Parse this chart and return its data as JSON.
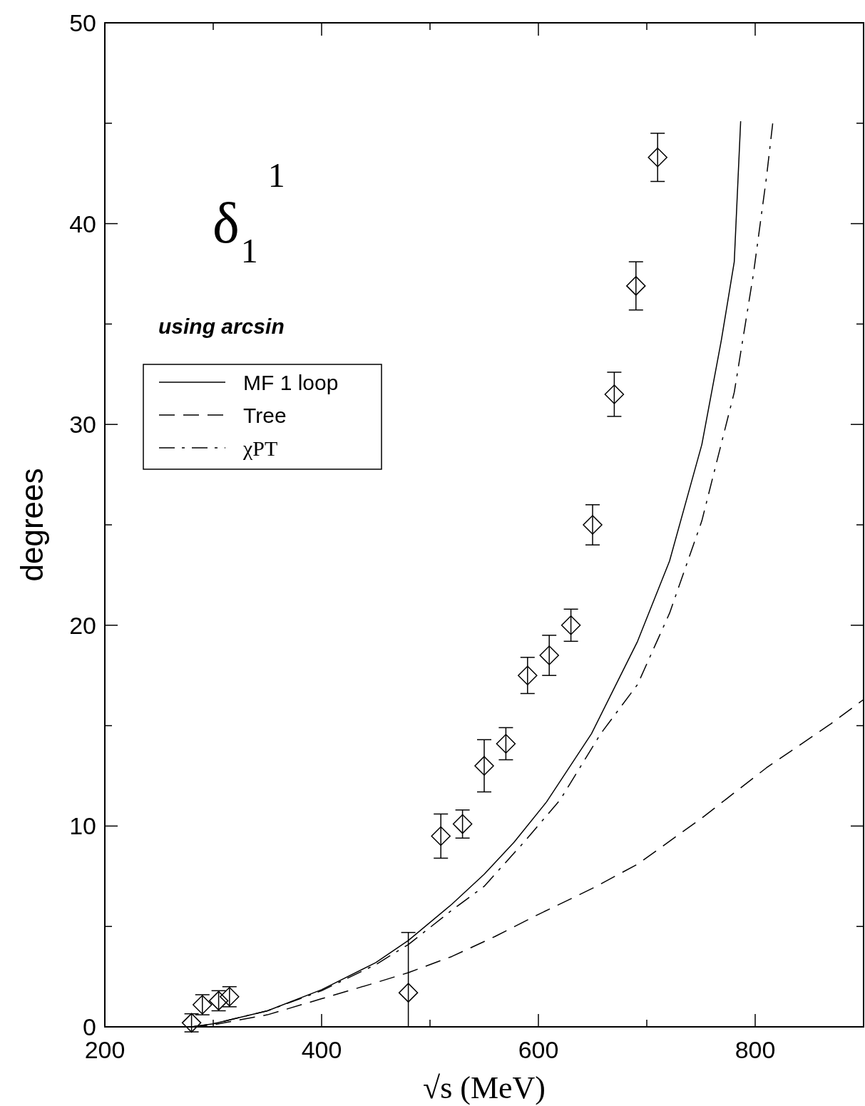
{
  "chart_data": {
    "type": "line",
    "xlabel": "√s (MeV)",
    "ylabel": "degrees",
    "annotations": [
      "δ$_{1}$$^{1}$",
      "using arcsin"
    ],
    "xlim": [
      200,
      900
    ],
    "ylim": [
      0,
      50
    ],
    "xticks": [
      200,
      {
        "value": 300,
        "label": null
      },
      400,
      {
        "value": 500,
        "label": null
      },
      600,
      {
        "value": 700,
        "label": null
      },
      800
    ],
    "yticks": [
      0,
      {
        "value": 5,
        "label": null
      },
      10,
      {
        "value": 15,
        "label": null
      },
      20,
      {
        "value": 25,
        "label": null
      },
      30,
      {
        "value": 35,
        "label": null
      },
      40,
      {
        "value": 45,
        "label": null
      },
      50
    ],
    "grid": false,
    "legend": "top left",
    "series": [
      {
        "name": "MF 1 loop",
        "color": "#000000",
        "line_style": "solid",
        "x": [
          280,
          300,
          350,
          400,
          450,
          480,
          520,
          550,
          577.6,
          607.5,
          649,
          691.5,
          721,
          750.8,
          768.8,
          780.7,
          786.6
        ],
        "values": [
          0,
          0.15,
          0.8,
          1.85,
          3.2,
          4.3,
          6.1,
          7.6,
          9.2,
          11.2,
          14.6,
          19.2,
          23.2,
          29.0,
          34.2,
          38.1,
          45.1
        ]
      },
      {
        "name": "Tree",
        "color": "#000000",
        "line_style": "dashed",
        "x": [
          280,
          300,
          350,
          400,
          450,
          480,
          520,
          560,
          600,
          650,
          691.5,
          750.8,
          810.4,
          870,
          900
        ],
        "values": [
          0,
          0.1,
          0.6,
          1.4,
          2.2,
          2.7,
          3.5,
          4.5,
          5.6,
          6.9,
          8.1,
          10.4,
          12.9,
          15.1,
          16.3
        ]
      },
      {
        "name": "χPT",
        "color": "#000000",
        "line_style": "dashdot",
        "x": [
          280,
          300,
          350,
          400,
          450,
          480,
          520,
          550,
          586.7,
          620,
          657.5,
          691.5,
          721,
          750.8,
          780.7,
          798.4,
          810.4,
          816.4
        ],
        "values": [
          0,
          0.15,
          0.8,
          1.8,
          3.1,
          4.1,
          5.8,
          7.0,
          9.2,
          11.3,
          14.6,
          17.05,
          20.6,
          25.2,
          31.6,
          37.5,
          42.3,
          45.1
        ]
      },
      {
        "type": "scatter",
        "color": "#000000",
        "marker": "diamond",
        "x": [
          280,
          290,
          305,
          315,
          480,
          510,
          530,
          550,
          570,
          590,
          610,
          630,
          650,
          670,
          690,
          710
        ],
        "values": [
          0.2,
          1.1,
          1.3,
          1.5,
          1.7,
          9.5,
          10.1,
          13.0,
          14.1,
          17.5,
          18.5,
          20.0,
          25.0,
          31.5,
          36.9,
          43.3
        ],
        "errors": [
          0.45,
          0.5,
          0.5,
          0.5,
          [
            0,
            4.7
          ],
          1.1,
          0.7,
          1.3,
          0.8,
          0.9,
          1.0,
          0.8,
          1.0,
          1.1,
          1.2,
          1.2
        ]
      }
    ]
  }
}
